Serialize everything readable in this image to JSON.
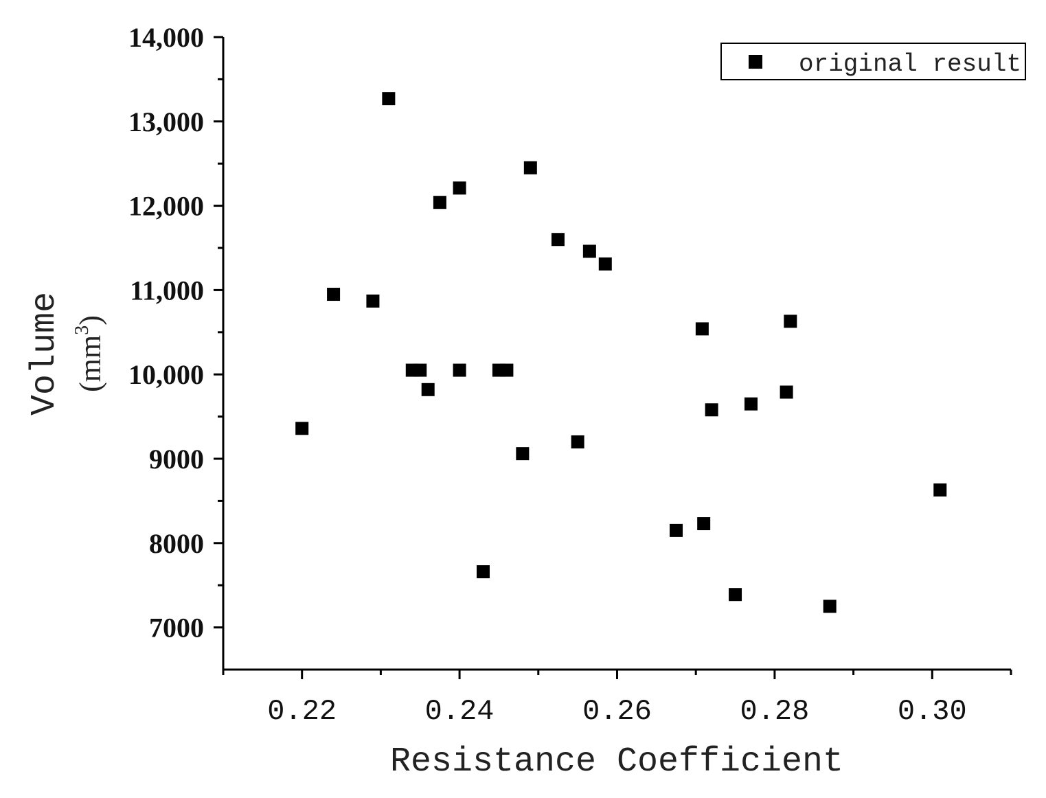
{
  "chart_data": {
    "type": "scatter",
    "xlabel": "Resistance Coefficient",
    "ylabel_line1": "Volume",
    "ylabel_line2_base": "(mm",
    "ylabel_line2_sup": "3",
    "ylabel_line2_end": ")",
    "xlim": [
      0.21,
      0.31
    ],
    "ylim": [
      6500,
      14000
    ],
    "xticks": [
      0.22,
      0.24,
      0.26,
      0.28,
      0.3
    ],
    "xtick_labels": [
      "0.22",
      "0.24",
      "0.26",
      "0.28",
      "0.30"
    ],
    "yticks": [
      7000,
      8000,
      9000,
      10000,
      11000,
      12000,
      13000,
      14000
    ],
    "ytick_labels": [
      "7000",
      "8000",
      "9000",
      "10,000",
      "11,000",
      "12,000",
      "13,000",
      "14,000"
    ],
    "grid": false,
    "legend_position": "top-right",
    "marker_color": "#000000",
    "series": [
      {
        "name": "original result",
        "marker": "square",
        "x": [
          0.22,
          0.224,
          0.229,
          0.231,
          0.234,
          0.235,
          0.236,
          0.2375,
          0.24,
          0.24,
          0.243,
          0.245,
          0.246,
          0.248,
          0.249,
          0.2525,
          0.255,
          0.2565,
          0.2585,
          0.2675,
          0.2708,
          0.271,
          0.272,
          0.275,
          0.277,
          0.2815,
          0.282,
          0.287,
          0.301
        ],
        "y": [
          9360,
          10950,
          10870,
          13270,
          10050,
          10050,
          9820,
          12040,
          12210,
          10050,
          7660,
          10050,
          10050,
          9060,
          12450,
          11600,
          9200,
          11460,
          11310,
          8150,
          10540,
          8230,
          9580,
          7390,
          9650,
          9790,
          10630,
          7250,
          8630
        ]
      }
    ]
  }
}
